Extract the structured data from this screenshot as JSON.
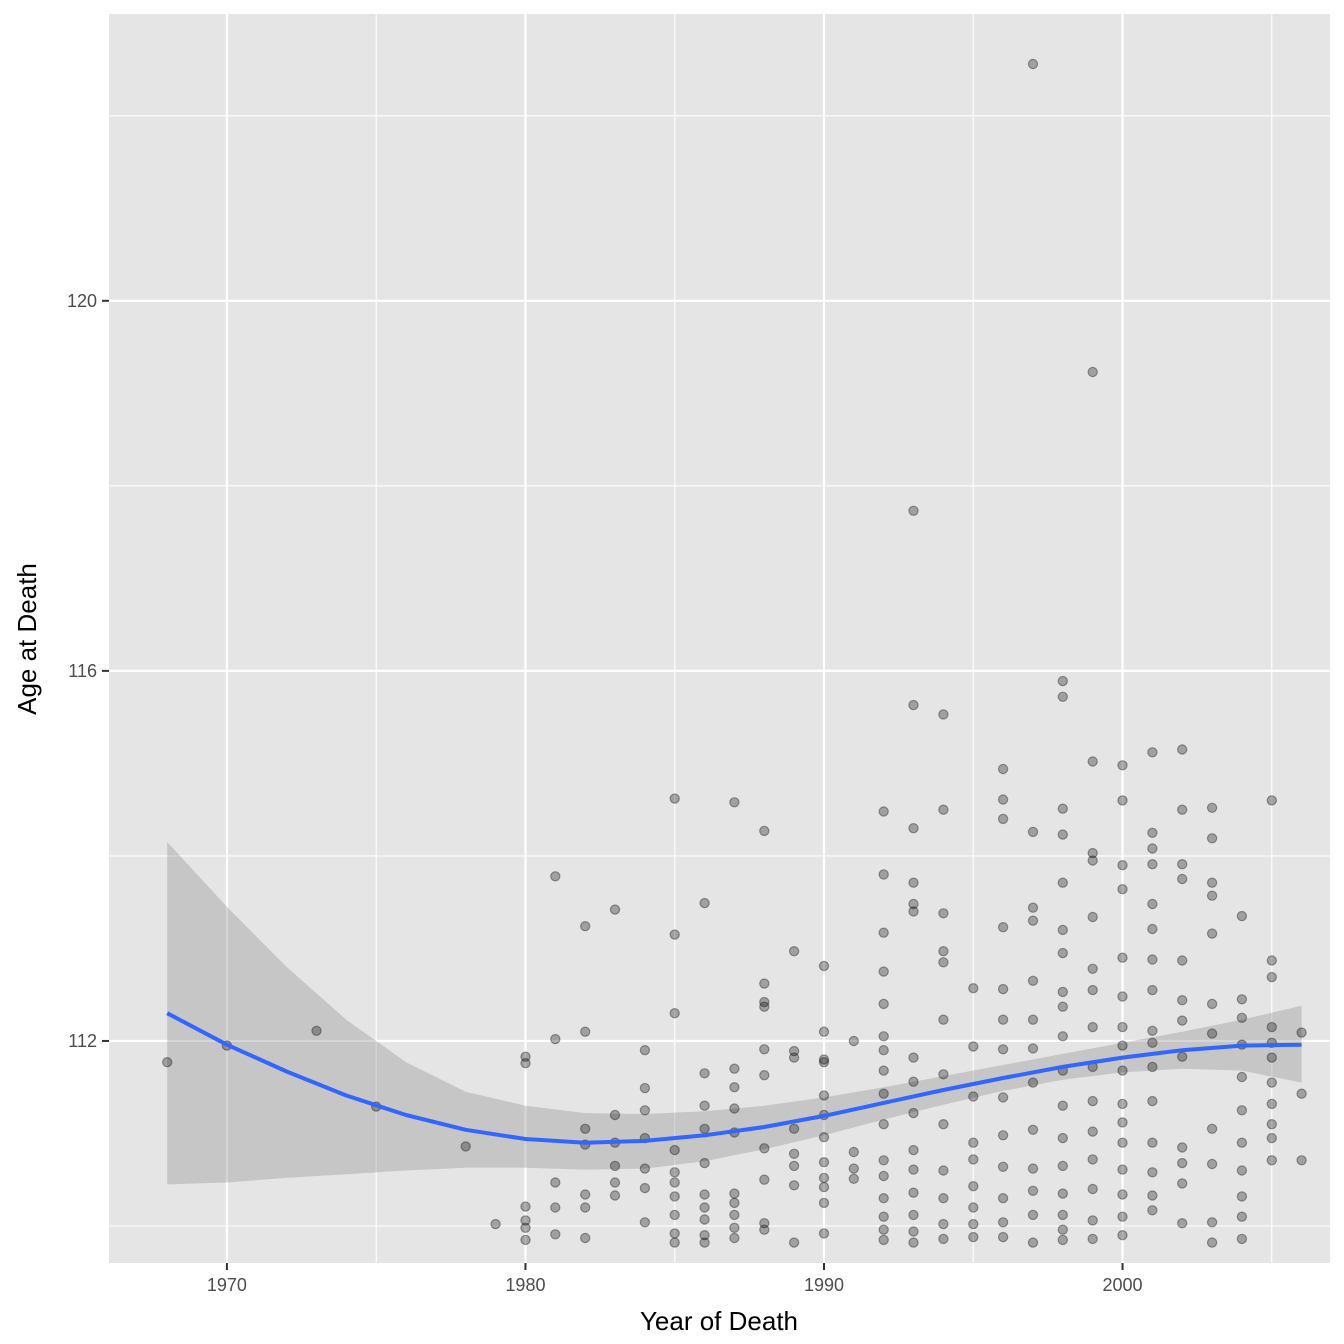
{
  "chart_data": {
    "type": "scatter",
    "title": "",
    "xlabel": "Year of Death",
    "ylabel": "Age at Death",
    "xlim": [
      1966.05,
      2006.95
    ],
    "ylim": [
      109.6,
      123.1
    ],
    "x_ticks": [
      1970,
      1980,
      1990,
      2000
    ],
    "x_minor_ticks": [
      1975,
      1985,
      1995,
      2005
    ],
    "y_ticks": [
      112,
      116,
      120
    ],
    "y_minor_ticks": [
      110,
      114,
      118,
      122
    ],
    "grid": true,
    "legend": "none",
    "colors": {
      "panel": "#e5e5e5",
      "grid": "#ffffff",
      "points": "#000000",
      "smooth_line": "#3366ff",
      "confidence_band": "#999999"
    },
    "points": [
      [
        1968,
        111.77
      ],
      [
        1970,
        111.95
      ],
      [
        1973,
        112.11
      ],
      [
        1975,
        111.29
      ],
      [
        1978,
        110.86
      ],
      [
        1979,
        110.02
      ],
      [
        1980,
        111.83
      ],
      [
        1980,
        111.76
      ],
      [
        1980,
        110.21
      ],
      [
        1980,
        110.06
      ],
      [
        1980,
        109.98
      ],
      [
        1980,
        109.85
      ],
      [
        1981,
        113.78
      ],
      [
        1981,
        112.02
      ],
      [
        1981,
        110.47
      ],
      [
        1981,
        110.2
      ],
      [
        1981,
        109.91
      ],
      [
        1982,
        113.24
      ],
      [
        1982,
        112.1
      ],
      [
        1982,
        111.05
      ],
      [
        1982,
        110.88
      ],
      [
        1982,
        110.34
      ],
      [
        1982,
        110.2
      ],
      [
        1982,
        109.87
      ],
      [
        1983,
        113.42
      ],
      [
        1983,
        111.2
      ],
      [
        1983,
        110.9
      ],
      [
        1983,
        110.65
      ],
      [
        1983,
        110.47
      ],
      [
        1983,
        110.33
      ],
      [
        1984,
        111.9
      ],
      [
        1984,
        111.49
      ],
      [
        1984,
        111.25
      ],
      [
        1984,
        110.95
      ],
      [
        1984,
        110.62
      ],
      [
        1984,
        110.41
      ],
      [
        1984,
        110.04
      ],
      [
        1985,
        114.62
      ],
      [
        1985,
        113.15
      ],
      [
        1985,
        112.3
      ],
      [
        1985,
        110.82
      ],
      [
        1985,
        110.58
      ],
      [
        1985,
        110.47
      ],
      [
        1985,
        110.32
      ],
      [
        1985,
        110.12
      ],
      [
        1985,
        109.92
      ],
      [
        1985,
        109.82
      ],
      [
        1986,
        113.49
      ],
      [
        1986,
        111.65
      ],
      [
        1986,
        111.3
      ],
      [
        1986,
        111.05
      ],
      [
        1986,
        110.68
      ],
      [
        1986,
        110.34
      ],
      [
        1986,
        110.2
      ],
      [
        1986,
        110.07
      ],
      [
        1986,
        109.9
      ],
      [
        1986,
        109.82
      ],
      [
        1987,
        114.58
      ],
      [
        1987,
        111.7
      ],
      [
        1987,
        111.5
      ],
      [
        1987,
        111.27
      ],
      [
        1987,
        111.01
      ],
      [
        1987,
        110.35
      ],
      [
        1987,
        110.25
      ],
      [
        1987,
        110.12
      ],
      [
        1987,
        109.98
      ],
      [
        1987,
        109.87
      ],
      [
        1988,
        114.27
      ],
      [
        1988,
        112.62
      ],
      [
        1988,
        112.42
      ],
      [
        1988,
        112.37
      ],
      [
        1988,
        111.91
      ],
      [
        1988,
        111.63
      ],
      [
        1988,
        110.84
      ],
      [
        1988,
        110.5
      ],
      [
        1988,
        110.03
      ],
      [
        1988,
        109.96
      ],
      [
        1989,
        112.97
      ],
      [
        1989,
        111.89
      ],
      [
        1989,
        111.82
      ],
      [
        1989,
        111.05
      ],
      [
        1989,
        110.78
      ],
      [
        1989,
        110.65
      ],
      [
        1989,
        110.44
      ],
      [
        1989,
        109.82
      ],
      [
        1990,
        112.81
      ],
      [
        1990,
        112.1
      ],
      [
        1990,
        111.8
      ],
      [
        1990,
        111.77
      ],
      [
        1990,
        111.41
      ],
      [
        1990,
        111.2
      ],
      [
        1990,
        110.96
      ],
      [
        1990,
        110.69
      ],
      [
        1990,
        110.52
      ],
      [
        1990,
        110.42
      ],
      [
        1990,
        110.25
      ],
      [
        1990,
        109.92
      ],
      [
        1991,
        112.0
      ],
      [
        1991,
        110.8
      ],
      [
        1991,
        110.62
      ],
      [
        1991,
        110.51
      ],
      [
        1992,
        114.48
      ],
      [
        1992,
        113.8
      ],
      [
        1992,
        113.17
      ],
      [
        1992,
        112.75
      ],
      [
        1992,
        112.4
      ],
      [
        1992,
        112.05
      ],
      [
        1992,
        111.9
      ],
      [
        1992,
        111.68
      ],
      [
        1992,
        111.43
      ],
      [
        1992,
        111.1
      ],
      [
        1992,
        110.71
      ],
      [
        1992,
        110.54
      ],
      [
        1992,
        110.3
      ],
      [
        1992,
        110.1
      ],
      [
        1992,
        109.96
      ],
      [
        1992,
        109.85
      ],
      [
        1993,
        117.73
      ],
      [
        1993,
        115.63
      ],
      [
        1993,
        114.3
      ],
      [
        1993,
        113.71
      ],
      [
        1993,
        113.48
      ],
      [
        1993,
        113.4
      ],
      [
        1993,
        111.82
      ],
      [
        1993,
        111.56
      ],
      [
        1993,
        111.22
      ],
      [
        1993,
        110.82
      ],
      [
        1993,
        110.61
      ],
      [
        1993,
        110.36
      ],
      [
        1993,
        110.12
      ],
      [
        1993,
        109.94
      ],
      [
        1993,
        109.82
      ],
      [
        1994,
        115.53
      ],
      [
        1994,
        114.5
      ],
      [
        1994,
        113.38
      ],
      [
        1994,
        112.97
      ],
      [
        1994,
        112.85
      ],
      [
        1994,
        112.23
      ],
      [
        1994,
        111.64
      ],
      [
        1994,
        111.1
      ],
      [
        1994,
        110.6
      ],
      [
        1994,
        110.3
      ],
      [
        1994,
        110.02
      ],
      [
        1994,
        109.86
      ],
      [
        1995,
        112.57
      ],
      [
        1995,
        111.94
      ],
      [
        1995,
        111.4
      ],
      [
        1995,
        110.9
      ],
      [
        1995,
        110.72
      ],
      [
        1995,
        110.43
      ],
      [
        1995,
        110.2
      ],
      [
        1995,
        110.02
      ],
      [
        1995,
        109.88
      ],
      [
        1996,
        114.94
      ],
      [
        1996,
        114.61
      ],
      [
        1996,
        114.4
      ],
      [
        1996,
        113.23
      ],
      [
        1996,
        112.56
      ],
      [
        1996,
        112.23
      ],
      [
        1996,
        111.91
      ],
      [
        1996,
        111.39
      ],
      [
        1996,
        110.98
      ],
      [
        1996,
        110.64
      ],
      [
        1996,
        110.3
      ],
      [
        1996,
        110.04
      ],
      [
        1996,
        109.88
      ],
      [
        1997,
        122.56
      ],
      [
        1997,
        114.26
      ],
      [
        1997,
        113.44
      ],
      [
        1997,
        113.3
      ],
      [
        1997,
        112.65
      ],
      [
        1997,
        112.23
      ],
      [
        1997,
        111.92
      ],
      [
        1997,
        111.55
      ],
      [
        1997,
        111.04
      ],
      [
        1997,
        110.62
      ],
      [
        1997,
        110.38
      ],
      [
        1997,
        110.12
      ],
      [
        1997,
        109.82
      ],
      [
        1998,
        115.89
      ],
      [
        1998,
        115.72
      ],
      [
        1998,
        114.51
      ],
      [
        1998,
        114.23
      ],
      [
        1998,
        113.71
      ],
      [
        1998,
        113.2
      ],
      [
        1998,
        112.95
      ],
      [
        1998,
        112.53
      ],
      [
        1998,
        112.37
      ],
      [
        1998,
        112.05
      ],
      [
        1998,
        111.68
      ],
      [
        1998,
        111.3
      ],
      [
        1998,
        110.95
      ],
      [
        1998,
        110.65
      ],
      [
        1998,
        110.35
      ],
      [
        1998,
        110.12
      ],
      [
        1998,
        109.96
      ],
      [
        1998,
        109.85
      ],
      [
        1999,
        119.23
      ],
      [
        1999,
        115.02
      ],
      [
        1999,
        114.03
      ],
      [
        1999,
        113.95
      ],
      [
        1999,
        113.34
      ],
      [
        1999,
        112.78
      ],
      [
        1999,
        112.55
      ],
      [
        1999,
        112.15
      ],
      [
        1999,
        111.72
      ],
      [
        1999,
        111.35
      ],
      [
        1999,
        111.02
      ],
      [
        1999,
        110.72
      ],
      [
        1999,
        110.4
      ],
      [
        1999,
        110.06
      ],
      [
        1999,
        109.86
      ],
      [
        2000,
        114.98
      ],
      [
        2000,
        114.6
      ],
      [
        2000,
        113.9
      ],
      [
        2000,
        113.64
      ],
      [
        2000,
        112.9
      ],
      [
        2000,
        112.48
      ],
      [
        2000,
        112.15
      ],
      [
        2000,
        111.95
      ],
      [
        2000,
        111.68
      ],
      [
        2000,
        111.32
      ],
      [
        2000,
        111.12
      ],
      [
        2000,
        110.9
      ],
      [
        2000,
        110.61
      ],
      [
        2000,
        110.34
      ],
      [
        2000,
        110.1
      ],
      [
        2000,
        109.9
      ],
      [
        2001,
        115.12
      ],
      [
        2001,
        114.25
      ],
      [
        2001,
        114.08
      ],
      [
        2001,
        113.91
      ],
      [
        2001,
        113.48
      ],
      [
        2001,
        113.21
      ],
      [
        2001,
        112.88
      ],
      [
        2001,
        112.55
      ],
      [
        2001,
        112.11
      ],
      [
        2001,
        111.98
      ],
      [
        2001,
        111.72
      ],
      [
        2001,
        111.35
      ],
      [
        2001,
        110.9
      ],
      [
        2001,
        110.58
      ],
      [
        2001,
        110.33
      ],
      [
        2001,
        110.17
      ],
      [
        2002,
        115.15
      ],
      [
        2002,
        114.5
      ],
      [
        2002,
        113.91
      ],
      [
        2002,
        113.75
      ],
      [
        2002,
        112.87
      ],
      [
        2002,
        112.44
      ],
      [
        2002,
        112.22
      ],
      [
        2002,
        111.83
      ],
      [
        2002,
        110.85
      ],
      [
        2002,
        110.68
      ],
      [
        2002,
        110.46
      ],
      [
        2002,
        110.03
      ],
      [
        2003,
        114.52
      ],
      [
        2003,
        114.19
      ],
      [
        2003,
        113.71
      ],
      [
        2003,
        113.57
      ],
      [
        2003,
        113.16
      ],
      [
        2003,
        112.4
      ],
      [
        2003,
        112.08
      ],
      [
        2003,
        111.05
      ],
      [
        2003,
        110.67
      ],
      [
        2003,
        110.04
      ],
      [
        2003,
        109.82
      ],
      [
        2004,
        113.35
      ],
      [
        2004,
        112.45
      ],
      [
        2004,
        112.25
      ],
      [
        2004,
        111.96
      ],
      [
        2004,
        111.61
      ],
      [
        2004,
        111.25
      ],
      [
        2004,
        110.9
      ],
      [
        2004,
        110.6
      ],
      [
        2004,
        110.32
      ],
      [
        2004,
        110.1
      ],
      [
        2004,
        109.86
      ],
      [
        2005,
        114.6
      ],
      [
        2005,
        112.87
      ],
      [
        2005,
        112.69
      ],
      [
        2005,
        112.15
      ],
      [
        2005,
        111.98
      ],
      [
        2005,
        111.82
      ],
      [
        2005,
        111.55
      ],
      [
        2005,
        111.32
      ],
      [
        2005,
        111.1
      ],
      [
        2005,
        110.95
      ],
      [
        2005,
        110.71
      ],
      [
        2006,
        112.09
      ],
      [
        2006,
        111.43
      ],
      [
        2006,
        110.71
      ]
    ],
    "smooth": {
      "x": [
        1968,
        1970,
        1972,
        1974,
        1976,
        1978,
        1980,
        1982,
        1984,
        1986,
        1988,
        1990,
        1992,
        1994,
        1996,
        1998,
        2000,
        2002,
        2004,
        2006
      ],
      "y": [
        112.3,
        111.96,
        111.67,
        111.41,
        111.2,
        111.04,
        110.94,
        110.9,
        110.92,
        110.98,
        111.07,
        111.19,
        111.33,
        111.47,
        111.6,
        111.72,
        111.82,
        111.9,
        111.95,
        111.96
      ],
      "upper": [
        114.15,
        113.45,
        112.8,
        112.23,
        111.77,
        111.45,
        111.3,
        111.22,
        111.21,
        111.24,
        111.3,
        111.39,
        111.5,
        111.62,
        111.74,
        111.86,
        111.98,
        112.1,
        112.23,
        112.38
      ],
      "lower": [
        110.45,
        110.47,
        110.52,
        110.56,
        110.6,
        110.63,
        110.63,
        110.61,
        110.62,
        110.7,
        110.83,
        110.98,
        111.15,
        111.31,
        111.46,
        111.58,
        111.66,
        111.7,
        111.68,
        111.55
      ]
    }
  }
}
